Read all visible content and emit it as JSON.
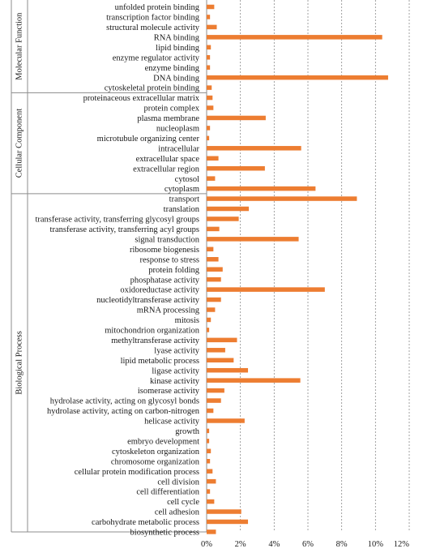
{
  "chart_data": {
    "type": "bar",
    "orientation": "horizontal",
    "bar_color": "#ED7D31",
    "xlim": [
      0,
      12
    ],
    "xticks": [
      "0%",
      "2%",
      "4%",
      "6%",
      "8%",
      "10%",
      "12%"
    ],
    "grid": "vertical-dashed",
    "groups": [
      {
        "name": "Molecular Function",
        "categories": [
          "unfolded protein binding",
          "transcription factor binding",
          "structural molecule activity",
          "RNA binding",
          "lipid binding",
          "enzyme regulator activity",
          "enzyme binding",
          "DNA binding",
          "cytoskeletal protein binding"
        ],
        "values": [
          0.45,
          0.2,
          0.6,
          10.4,
          0.25,
          0.2,
          0.2,
          10.75,
          0.3
        ]
      },
      {
        "name": "Cellular Component",
        "categories": [
          "proteinaceous extracellular matrix",
          "protein complex",
          "plasma membrane",
          "nucleoplasm",
          "microtubule organizing center",
          "intracellular",
          "extracellular space",
          "extracellular region",
          "cytosol",
          "cytoplasm"
        ],
        "values": [
          0.35,
          0.4,
          3.5,
          0.2,
          0.15,
          5.6,
          0.7,
          3.45,
          0.5,
          6.45
        ]
      },
      {
        "name": "Biological Process",
        "categories": [
          "transport",
          "translation",
          "transferase activity, transferring glycosyl groups",
          "transferase activity, transferring acyl groups",
          "signal transduction",
          "ribosome biogenesis",
          "response to stress",
          "protein folding",
          "phosphatase activity",
          "oxidoreductase activity",
          "nucleotidyltransferase activity",
          "mRNA processing",
          "mitosis",
          "mitochondrion organization",
          "methyltransferase activity",
          "lyase activity",
          "lipid metabolic process",
          "ligase activity",
          "kinase activity",
          "isomerase activity",
          "hydrolase activity, acting on glycosyl bonds",
          "hydrolase activity, acting on carbon-nitrogen",
          "helicase activity",
          "growth",
          "embryo development",
          "cytoskeleton organization",
          "chromosome organization",
          "cellular protein modification process",
          "cell division",
          "cell differentiation",
          "cell cycle",
          "cell adhesion",
          "carbohydrate metabolic process",
          "biosynthetic process"
        ],
        "values": [
          8.9,
          2.5,
          1.9,
          0.75,
          5.45,
          0.4,
          0.7,
          0.95,
          0.85,
          7.0,
          0.85,
          0.5,
          0.25,
          0.15,
          1.8,
          1.1,
          1.6,
          2.45,
          5.55,
          1.05,
          0.85,
          0.4,
          2.25,
          0.15,
          0.15,
          0.25,
          0.2,
          0.35,
          0.55,
          0.2,
          0.45,
          2.05,
          2.45,
          0.55
        ]
      }
    ]
  }
}
